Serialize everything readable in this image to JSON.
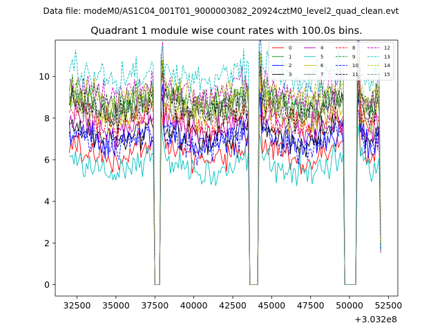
{
  "figure": {
    "suptitle": "Data file: modeM0/AS1C04_001T01_9000003082_20924cztM0_level2_quad_clean.evt"
  },
  "chart_data": {
    "type": "line",
    "title": "Quadrant 1 module wise count rates with 100.0s bins.",
    "xlabel": "",
    "ylabel": "",
    "x_offset_label": "+3.032e8",
    "xlim": [
      31100,
      53100
    ],
    "ylim": [
      -0.55,
      11.75
    ],
    "x_ticks": [
      32500,
      35000,
      37500,
      40000,
      42500,
      45000,
      47500,
      50000,
      52500
    ],
    "x_tick_labels": [
      "32500",
      "35000",
      "37500",
      "40000",
      "42500",
      "45000",
      "47500",
      "50000",
      "52500"
    ],
    "y_ticks": [
      0,
      2,
      4,
      6,
      8,
      10
    ],
    "y_tick_labels": [
      "0",
      "2",
      "4",
      "6",
      "8",
      "10"
    ],
    "x_start": 32000,
    "x_end": 52000,
    "bin_width": 100,
    "gaps": [
      [
        37500,
        37800
      ],
      [
        43600,
        44100
      ],
      [
        49700,
        50400
      ]
    ],
    "legend_placement": "top-right",
    "series": [
      {
        "name": "0",
        "color": "#ff0000",
        "dash": "solid",
        "mean_level": 6.2
      },
      {
        "name": "1",
        "color": "#008000",
        "dash": "solid",
        "mean_level": 8.6
      },
      {
        "name": "2",
        "color": "#0000ff",
        "dash": "solid",
        "mean_level": 6.9
      },
      {
        "name": "3",
        "color": "#000000",
        "dash": "solid",
        "mean_level": 7.1
      },
      {
        "name": "4",
        "color": "#bf00bf",
        "dash": "solid",
        "mean_level": 7.5
      },
      {
        "name": "5",
        "color": "#00bfbf",
        "dash": "solid",
        "mean_level": 5.5
      },
      {
        "name": "6",
        "color": "#bfbf00",
        "dash": "solid",
        "mean_level": 8.0
      },
      {
        "name": "7",
        "color": "#808080",
        "dash": "solid",
        "mean_level": 8.5
      },
      {
        "name": "8",
        "color": "#ff0000",
        "dash": "dashed",
        "mean_level": 7.8
      },
      {
        "name": "9",
        "color": "#008000",
        "dash": "dashed",
        "mean_level": 8.9
      },
      {
        "name": "10",
        "color": "#0000ff",
        "dash": "dashed",
        "mean_level": 6.8
      },
      {
        "name": "11",
        "color": "#000000",
        "dash": "dashed",
        "mean_level": 8.4
      },
      {
        "name": "12",
        "color": "#bf00bf",
        "dash": "dashed",
        "mean_level": 9.2
      },
      {
        "name": "13",
        "color": "#00bfbf",
        "dash": "dashed",
        "mean_level": 9.9
      },
      {
        "name": "14",
        "color": "#bfbf00",
        "dash": "dashed",
        "mean_level": 9.0
      },
      {
        "name": "15",
        "color": "#808080",
        "dash": "dashed",
        "mean_level": 8.3
      }
    ]
  }
}
